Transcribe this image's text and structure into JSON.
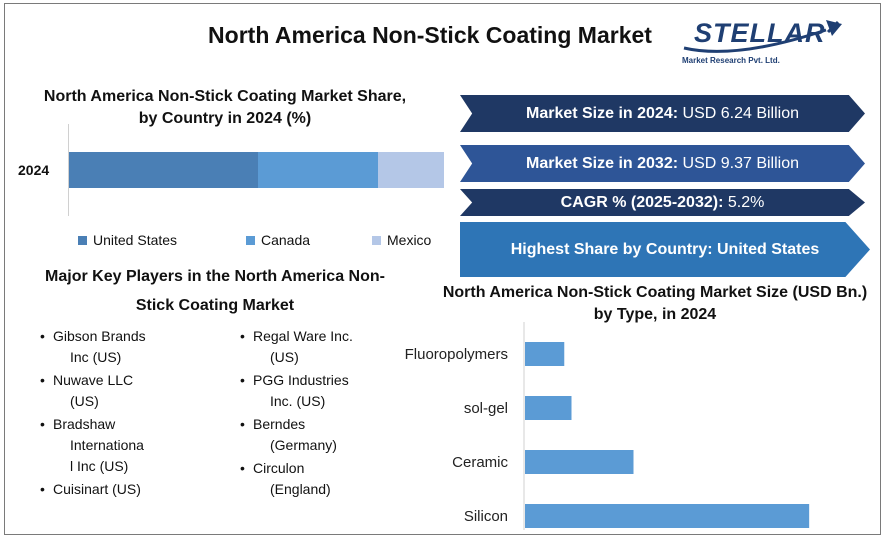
{
  "title": "North America Non-Stick Coating Market",
  "logo": {
    "name": "STELLAR",
    "subtitle": "Market Research Pvt. Ltd."
  },
  "share_chart_title": "North America Non-Stick Coating Market Share, by Country in 2024 (%)",
  "banners": {
    "size_2024": {
      "label": "Market Size in 2024:",
      "value": "USD 6.24 Billion"
    },
    "size_2032": {
      "label": "Market Size in 2032:",
      "value": "USD 9.37 Billion"
    },
    "cagr": {
      "label": "CAGR % (2025-2032):",
      "value": "5.2%"
    },
    "highest_share": {
      "label": "Highest Share by Country:",
      "value": "United States"
    }
  },
  "players": {
    "title": "Major Key Players in the North America Non-Stick Coating Market",
    "left": [
      {
        "line1": "Gibson Brands",
        "line2": "Inc (US)"
      },
      {
        "line1": "Nuwave LLC",
        "line2": "(US)"
      },
      {
        "line1": "Bradshaw",
        "line2": "Internationa",
        "line3": "l Inc (US)"
      },
      {
        "line1": "Cuisinart (US)"
      }
    ],
    "right": [
      {
        "line1": "Regal Ware Inc.",
        "line2": "(US)"
      },
      {
        "line1": "PGG Industries",
        "line2": "Inc. (US)"
      },
      {
        "line1": "Berndes",
        "line2": "(Germany)"
      },
      {
        "line1": "Circulon",
        "line2": "(England)"
      }
    ]
  },
  "type_chart_title": "North America Non-Stick Coating Market Size (USD Bn.) by Type, in 2024",
  "chart_data": [
    {
      "type": "bar",
      "orientation": "horizontal-stacked",
      "title": "North America Non-Stick Coating Market Share, by Country in 2024 (%)",
      "categories": [
        "2024"
      ],
      "series": [
        {
          "name": "United States",
          "values": [
            50.5
          ],
          "color": "#4a7fb5"
        },
        {
          "name": "Canada",
          "values": [
            32
          ],
          "color": "#5b9bd5"
        },
        {
          "name": "Mexico",
          "values": [
            17.5
          ],
          "color": "#b4c7e7"
        }
      ],
      "xlim": [
        0,
        100
      ],
      "legend": "bottom"
    },
    {
      "type": "bar",
      "orientation": "horizontal",
      "title": "North America Non-Stick Coating Market Size (USD Bn.) by Type, in 2024",
      "categories": [
        "Fluoropolymers",
        "sol-gel",
        "Ceramic",
        "Silicon"
      ],
      "values": [
        0.38,
        0.45,
        1.05,
        2.75
      ],
      "xlim": [
        0,
        3
      ],
      "color": "#5b9bd5",
      "grid": false
    }
  ]
}
